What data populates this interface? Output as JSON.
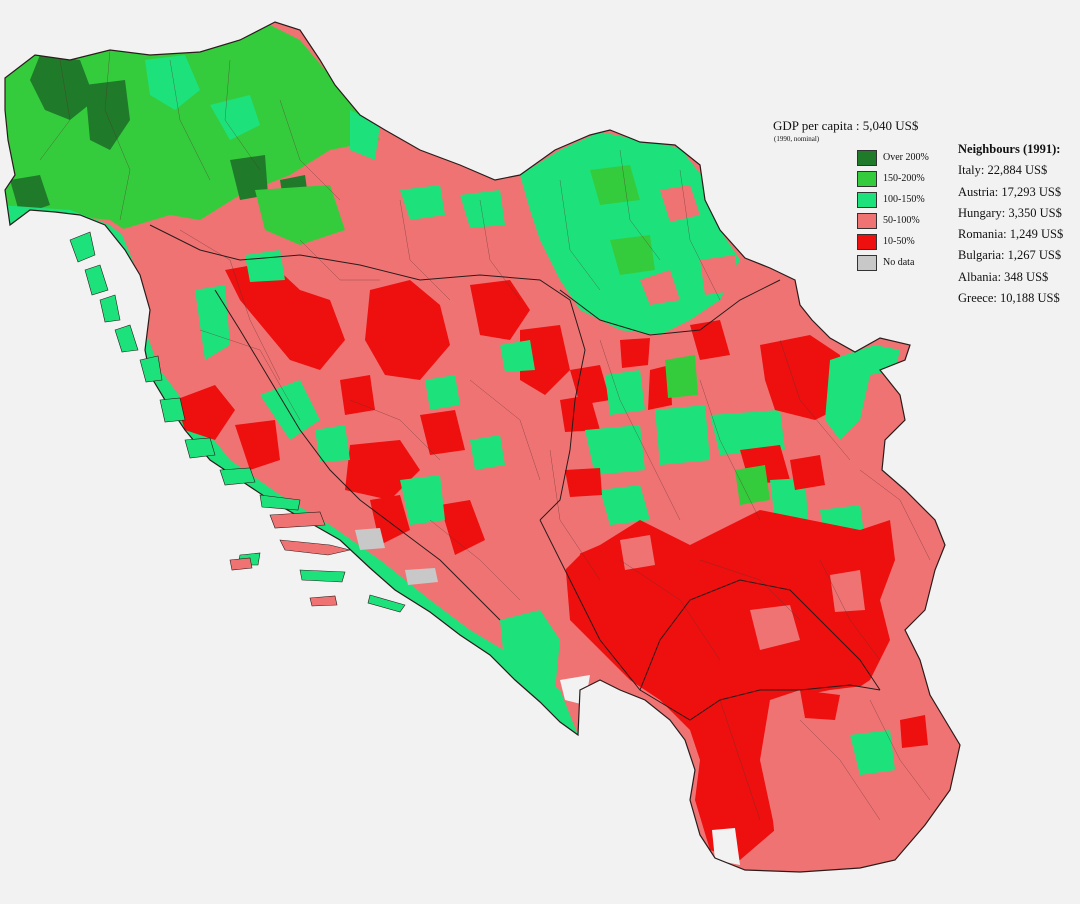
{
  "legend": {
    "title": "GDP per capita : 5,040 US$",
    "subtitle": "(1990, nominal)",
    "classes": [
      {
        "label": "Over 200%",
        "color": "#1f7a2a"
      },
      {
        "label": "150-200%",
        "color": "#34cc3c"
      },
      {
        "label": "100-150%",
        "color": "#1de27b"
      },
      {
        "label": "50-100%",
        "color": "#f07373"
      },
      {
        "label": "10-50%",
        "color": "#ee0f0f"
      },
      {
        "label": "No data",
        "color": "#c8c8c8"
      }
    ]
  },
  "neighbours": {
    "title": "Neighbours (1991):",
    "items": [
      "Italy: 22,884 US$",
      "Austria: 17,293 US$",
      "Hungary: 3,350 US$",
      "Romania: 1,249 US$",
      "Bulgaria: 1,267 US$",
      "Albania: 348 US$",
      "Greece: 10,188 US$"
    ]
  },
  "colors": {
    "background": "#f2f2f2",
    "border": "#3a2a2a",
    "coast_band": "#22d47a"
  }
}
